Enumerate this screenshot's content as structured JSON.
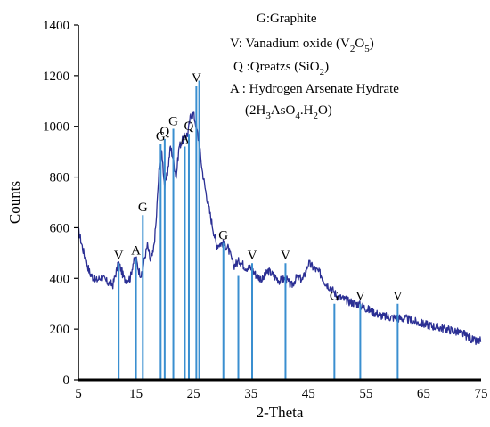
{
  "chart_data": {
    "type": "line",
    "title": "",
    "xlabel": "2-Theta",
    "ylabel": "Counts",
    "xlim": [
      5,
      75
    ],
    "ylim": [
      0,
      1400
    ],
    "grid": false,
    "x_ticks": [
      5,
      15,
      25,
      35,
      45,
      55,
      65,
      75
    ],
    "y_ticks": [
      0,
      200,
      400,
      600,
      800,
      1000,
      1200,
      1400
    ],
    "series": [
      {
        "color": "#2b2f94",
        "x": [
          5,
          6,
          7,
          8,
          9,
          10,
          11,
          11.5,
          12,
          12.5,
          13,
          14,
          14.5,
          15,
          15.5,
          16,
          16.5,
          17,
          17.5,
          18,
          18.5,
          19,
          19.5,
          20,
          20.5,
          21,
          21.5,
          22,
          22.5,
          23,
          23.5,
          24,
          24.5,
          25,
          25.5,
          26,
          26.5,
          27,
          28,
          29,
          30,
          31,
          32,
          33,
          34,
          35,
          36,
          37,
          38,
          39,
          40,
          41,
          42,
          43,
          44,
          45,
          46,
          47,
          48,
          49,
          50,
          52,
          54,
          56,
          58,
          60,
          62,
          64,
          66,
          68,
          70,
          72,
          73,
          74,
          75
        ],
        "y": [
          590,
          495,
          420,
          390,
          405,
          385,
          375,
          420,
          460,
          430,
          395,
          400,
          460,
          480,
          430,
          410,
          480,
          530,
          470,
          500,
          620,
          820,
          900,
          760,
          820,
          920,
          870,
          800,
          920,
          940,
          960,
          970,
          1040,
          1050,
          1000,
          930,
          830,
          760,
          640,
          530,
          540,
          520,
          450,
          470,
          445,
          440,
          410,
          395,
          430,
          410,
          390,
          400,
          370,
          405,
          395,
          460,
          440,
          420,
          380,
          360,
          330,
          310,
          295,
          270,
          250,
          245,
          240,
          225,
          215,
          205,
          195,
          180,
          165,
          150,
          155
        ]
      }
    ],
    "reference_peaks": [
      {
        "x": 12,
        "y": 460,
        "label": "V"
      },
      {
        "x": 15,
        "y": 480,
        "label": "A"
      },
      {
        "x": 16.2,
        "y": 650,
        "label": "G"
      },
      {
        "x": 19.3,
        "y": 930,
        "label": "G"
      },
      {
        "x": 20,
        "y": 950,
        "label": "Q"
      },
      {
        "x": 21.5,
        "y": 990,
        "label": "G"
      },
      {
        "x": 23.5,
        "y": 920,
        "label": "A"
      },
      {
        "x": 24.2,
        "y": 970,
        "label": "Q"
      },
      {
        "x": 25.5,
        "y": 1160,
        "label": "V"
      },
      {
        "x": 26,
        "y": 1180,
        "label": ""
      },
      {
        "x": 30.2,
        "y": 540,
        "label": "G"
      },
      {
        "x": 32.8,
        "y": 410,
        "label": ""
      },
      {
        "x": 35.2,
        "y": 460,
        "label": "V"
      },
      {
        "x": 41,
        "y": 460,
        "label": "V"
      },
      {
        "x": 49.5,
        "y": 300,
        "label": "G"
      },
      {
        "x": 54,
        "y": 300,
        "label": "V"
      },
      {
        "x": 60.5,
        "y": 300,
        "label": "V"
      }
    ],
    "legend": {
      "placement": "top-right",
      "lines": [
        "G:Graphite",
        "V: Vanadium oxide (V2O5)",
        "Q :Qreatzs (SiO2)",
        "A : Hydrogen Arsenate Hydrate",
        "(2H3AsO4.H2O)"
      ]
    }
  }
}
